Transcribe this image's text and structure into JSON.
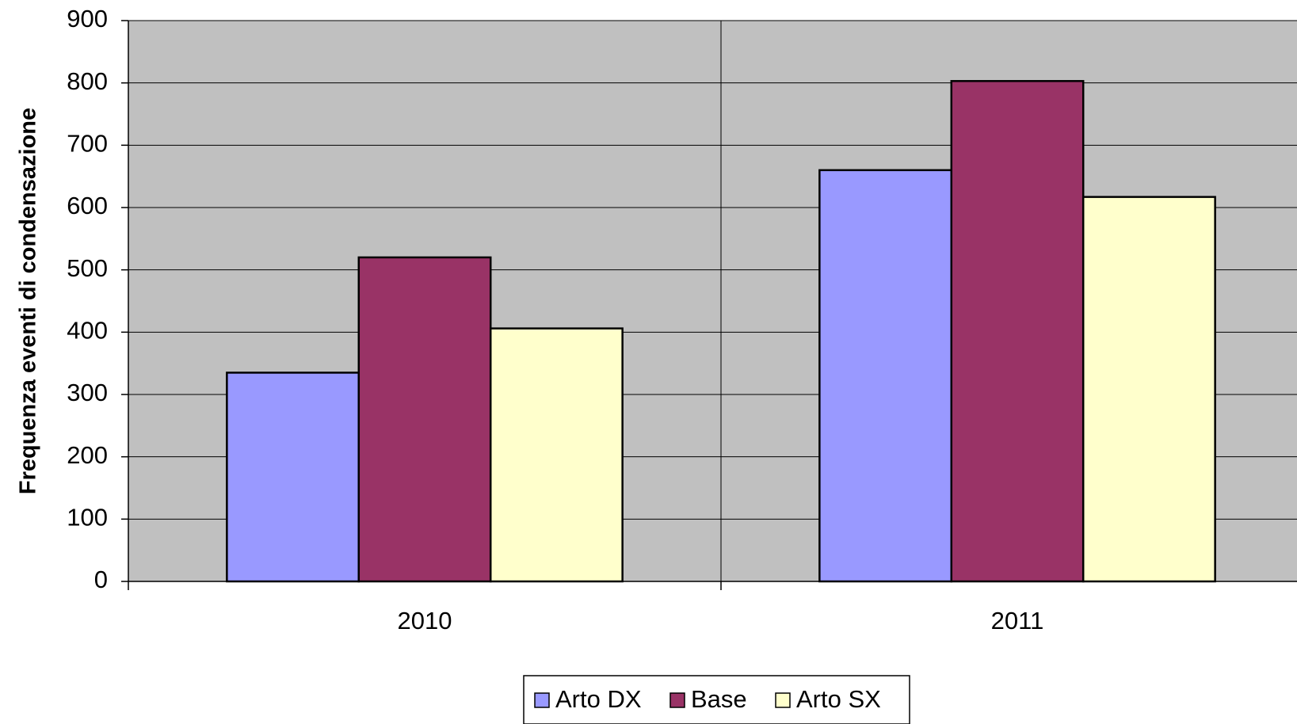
{
  "chart_data": {
    "type": "bar",
    "y_label": "Frequenza eventi di condensazione",
    "categories": [
      "2010",
      "2011"
    ],
    "series": [
      {
        "name": "Arto DX",
        "color": "#9999ff",
        "values": [
          335,
          660
        ]
      },
      {
        "name": "Base",
        "color": "#993366",
        "values": [
          520,
          803
        ]
      },
      {
        "name": "Arto SX",
        "color": "#ffffcc",
        "values": [
          406,
          617
        ]
      }
    ],
    "ylim": [
      0,
      900
    ],
    "yticks": [
      0,
      100,
      200,
      300,
      400,
      500,
      600,
      700,
      800,
      900
    ],
    "grid": true,
    "legend": "bottom"
  }
}
